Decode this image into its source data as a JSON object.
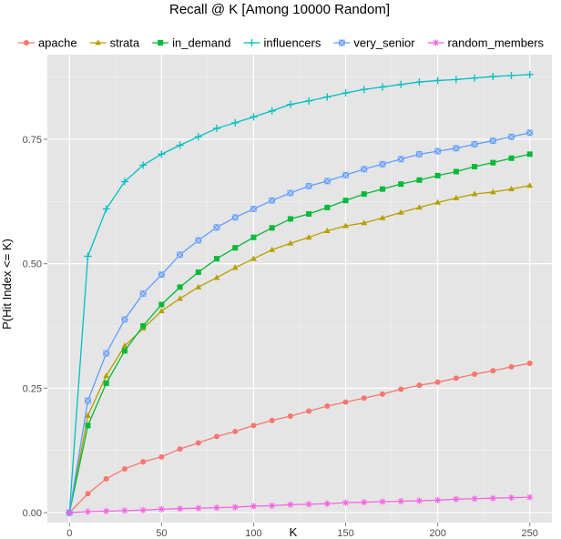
{
  "chart_data": {
    "type": "line",
    "title": "Recall @ K [Among 10000 Random]",
    "xlabel": "K",
    "ylabel": "P(Hit Index <= K)",
    "xlim": [
      -12,
      262
    ],
    "ylim": [
      -0.02,
      0.92
    ],
    "x_ticks": [
      0,
      50,
      100,
      150,
      200,
      250
    ],
    "y_ticks": [
      0.0,
      0.25,
      0.5,
      0.75
    ],
    "x_tick_labels": [
      "0",
      "50",
      "100",
      "150",
      "200",
      "250"
    ],
    "y_tick_labels": [
      "0.00",
      "0.25",
      "0.50",
      "0.75"
    ],
    "legend_position": "top",
    "grid": true,
    "x": [
      0,
      10,
      20,
      30,
      40,
      50,
      60,
      70,
      80,
      90,
      100,
      110,
      120,
      130,
      140,
      150,
      160,
      170,
      180,
      190,
      200,
      210,
      220,
      230,
      240,
      250
    ],
    "series": [
      {
        "name": "apache",
        "color": "#F8766D",
        "marker": "circle",
        "values": [
          0.0,
          0.038,
          0.068,
          0.088,
          0.102,
          0.112,
          0.128,
          0.14,
          0.153,
          0.163,
          0.175,
          0.185,
          0.194,
          0.204,
          0.214,
          0.222,
          0.23,
          0.238,
          0.248,
          0.256,
          0.262,
          0.27,
          0.278,
          0.285,
          0.293,
          0.3
        ]
      },
      {
        "name": "strata",
        "color": "#B79F00",
        "marker": "triangle",
        "values": [
          0.0,
          0.195,
          0.275,
          0.335,
          0.37,
          0.405,
          0.43,
          0.453,
          0.472,
          0.492,
          0.51,
          0.528,
          0.541,
          0.553,
          0.566,
          0.576,
          0.582,
          0.592,
          0.603,
          0.613,
          0.623,
          0.632,
          0.64,
          0.644,
          0.65,
          0.657
        ]
      },
      {
        "name": "in_demand",
        "color": "#00BA38",
        "marker": "square",
        "values": [
          0.0,
          0.175,
          0.26,
          0.325,
          0.375,
          0.418,
          0.453,
          0.483,
          0.51,
          0.532,
          0.553,
          0.572,
          0.59,
          0.6,
          0.613,
          0.627,
          0.64,
          0.65,
          0.66,
          0.668,
          0.677,
          0.685,
          0.695,
          0.703,
          0.712,
          0.72
        ]
      },
      {
        "name": "influencers",
        "color": "#00BFC4",
        "marker": "plus",
        "values": [
          0.0,
          0.515,
          0.61,
          0.665,
          0.698,
          0.72,
          0.738,
          0.755,
          0.772,
          0.783,
          0.795,
          0.807,
          0.82,
          0.827,
          0.835,
          0.843,
          0.85,
          0.855,
          0.86,
          0.865,
          0.868,
          0.87,
          0.873,
          0.876,
          0.878,
          0.88
        ]
      },
      {
        "name": "very_senior",
        "color": "#619CFF",
        "marker": "square-cross",
        "values": [
          0.0,
          0.225,
          0.32,
          0.388,
          0.44,
          0.478,
          0.518,
          0.547,
          0.573,
          0.593,
          0.61,
          0.627,
          0.642,
          0.656,
          0.666,
          0.678,
          0.69,
          0.7,
          0.71,
          0.72,
          0.726,
          0.732,
          0.74,
          0.747,
          0.755,
          0.763
        ]
      },
      {
        "name": "random_members",
        "color": "#F564E3",
        "marker": "asterisk",
        "values": [
          0.0,
          0.002,
          0.003,
          0.004,
          0.005,
          0.007,
          0.008,
          0.009,
          0.01,
          0.011,
          0.013,
          0.014,
          0.016,
          0.017,
          0.018,
          0.02,
          0.021,
          0.022,
          0.023,
          0.024,
          0.025,
          0.027,
          0.028,
          0.029,
          0.03,
          0.031
        ]
      }
    ]
  }
}
